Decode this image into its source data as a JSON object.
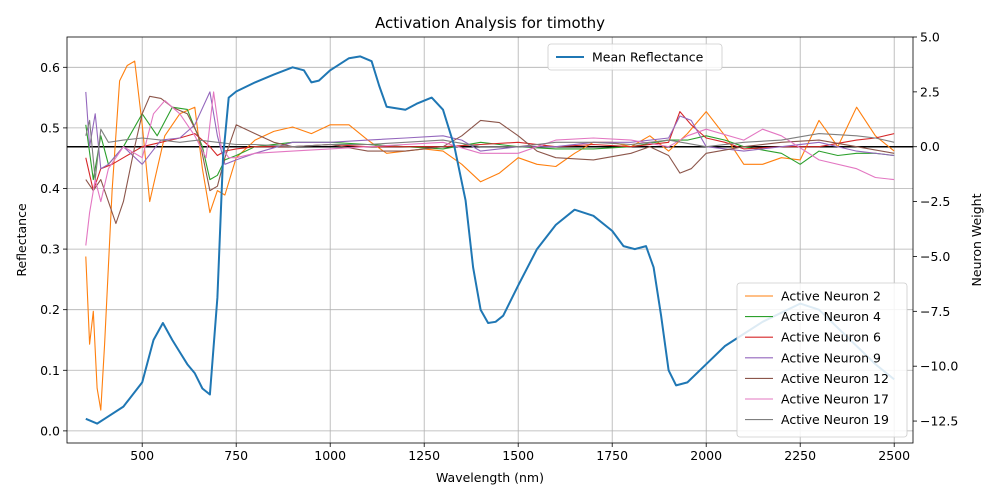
{
  "chart_data": {
    "type": "line",
    "title": "Activation Analysis for timothy",
    "xlabel": "Wavelength (nm)",
    "ylabel": "Reflectance",
    "y2label": "Neuron Weight",
    "xlim": [
      300,
      2550
    ],
    "ylim": [
      -0.02,
      0.65
    ],
    "y2lim": [
      -13.5,
      5.0
    ],
    "xticks": [
      500,
      750,
      1000,
      1250,
      1500,
      1750,
      2000,
      2250,
      2500
    ],
    "yticks": [
      0.0,
      0.1,
      0.2,
      0.3,
      0.4,
      0.5,
      0.6
    ],
    "y2ticks": [
      -12.5,
      -10.0,
      -7.5,
      -5.0,
      -2.5,
      0.0,
      2.5,
      5.0
    ],
    "xtick_labels": [
      "500",
      "750",
      "1000",
      "1250",
      "1500",
      "1750",
      "2000",
      "2250",
      "2500"
    ],
    "ytick_labels": [
      "0.0",
      "0.1",
      "0.2",
      "0.3",
      "0.4",
      "0.5",
      "0.6"
    ],
    "y2tick_labels": [
      "−12.5",
      "−10.0",
      "−7.5",
      "−5.0",
      "−2.5",
      "0.0",
      "2.5",
      "5.0"
    ],
    "grid": true,
    "zero_line": {
      "axis": "right",
      "value": 0.0,
      "color": "#000000"
    },
    "mean_series": {
      "name": "Mean Reflectance",
      "color": "#1f77b4",
      "axis": "left",
      "x": [
        350,
        380,
        400,
        450,
        500,
        530,
        555,
        580,
        600,
        620,
        640,
        660,
        680,
        700,
        715,
        730,
        750,
        800,
        850,
        900,
        930,
        950,
        970,
        1000,
        1050,
        1080,
        1110,
        1130,
        1150,
        1200,
        1230,
        1270,
        1300,
        1330,
        1360,
        1380,
        1400,
        1420,
        1440,
        1460,
        1500,
        1550,
        1600,
        1650,
        1700,
        1750,
        1780,
        1810,
        1840,
        1860,
        1880,
        1900,
        1920,
        1950,
        2000,
        2050,
        2100,
        2150,
        2200,
        2250,
        2300,
        2350,
        2400,
        2450,
        2500
      ],
      "y": [
        0.02,
        0.012,
        0.02,
        0.04,
        0.08,
        0.15,
        0.178,
        0.15,
        0.13,
        0.11,
        0.095,
        0.07,
        0.06,
        0.22,
        0.45,
        0.55,
        0.56,
        0.575,
        0.588,
        0.6,
        0.595,
        0.575,
        0.578,
        0.595,
        0.615,
        0.618,
        0.61,
        0.57,
        0.535,
        0.53,
        0.54,
        0.55,
        0.53,
        0.47,
        0.38,
        0.27,
        0.2,
        0.178,
        0.18,
        0.19,
        0.24,
        0.3,
        0.34,
        0.365,
        0.355,
        0.33,
        0.305,
        0.3,
        0.305,
        0.27,
        0.19,
        0.1,
        0.075,
        0.08,
        0.11,
        0.14,
        0.16,
        0.18,
        0.195,
        0.21,
        0.2,
        0.17,
        0.14,
        0.11,
        0.085
      ]
    },
    "neuron_series": [
      {
        "name": "Active Neuron 2",
        "color": "#ff7f0e",
        "x": [
          350,
          360,
          370,
          380,
          390,
          400,
          420,
          440,
          460,
          480,
          500,
          520,
          540,
          560,
          600,
          640,
          660,
          680,
          700,
          720,
          750,
          800,
          850,
          900,
          950,
          1000,
          1050,
          1100,
          1150,
          1200,
          1250,
          1300,
          1350,
          1400,
          1450,
          1500,
          1550,
          1600,
          1650,
          1700,
          1750,
          1800,
          1850,
          1900,
          1950,
          2000,
          2050,
          2100,
          2150,
          2200,
          2250,
          2300,
          2350,
          2400,
          2450,
          2500
        ],
        "y": [
          -5.0,
          -9.0,
          -7.5,
          -11.0,
          -12.0,
          -9.0,
          -2.0,
          3.0,
          3.7,
          3.9,
          1.0,
          -2.5,
          -1.0,
          0.5,
          1.5,
          1.8,
          -1.0,
          -3.0,
          -2.0,
          -2.2,
          -0.5,
          0.3,
          0.7,
          0.9,
          0.6,
          1.0,
          1.0,
          0.3,
          -0.3,
          -0.2,
          -0.1,
          -0.2,
          -0.8,
          -1.6,
          -1.2,
          -0.5,
          -0.8,
          -0.9,
          -0.3,
          0.2,
          0.2,
          0.0,
          0.5,
          -0.2,
          0.6,
          1.6,
          0.5,
          -0.8,
          -0.8,
          -0.5,
          -0.6,
          1.2,
          0.0,
          1.8,
          0.5,
          -0.2
        ]
      },
      {
        "name": "Active Neuron 4",
        "color": "#2ca02c",
        "x": [
          350,
          370,
          390,
          410,
          450,
          500,
          540,
          580,
          620,
          660,
          680,
          700,
          720,
          750,
          800,
          900,
          1000,
          1100,
          1200,
          1300,
          1400,
          1500,
          1600,
          1700,
          1800,
          1900,
          1950,
          2000,
          2050,
          2100,
          2200,
          2250,
          2300,
          2350,
          2400,
          2450,
          2500
        ],
        "y": [
          1.0,
          -1.5,
          0.5,
          -0.8,
          0.0,
          1.5,
          0.5,
          1.8,
          1.7,
          0.0,
          -1.5,
          -1.3,
          -0.6,
          -0.4,
          0.0,
          0.2,
          0.2,
          0.1,
          0.0,
          -0.1,
          0.2,
          0.0,
          -0.1,
          -0.1,
          0.0,
          0.3,
          0.3,
          0.5,
          0.3,
          0.0,
          -0.3,
          -0.8,
          -0.2,
          -0.4,
          -0.3,
          -0.3,
          -0.4
        ]
      },
      {
        "name": "Active Neuron 6",
        "color": "#d62728",
        "x": [
          350,
          370,
          390,
          420,
          450,
          500,
          550,
          600,
          640,
          680,
          700,
          720,
          750,
          800,
          900,
          1000,
          1100,
          1200,
          1300,
          1400,
          1500,
          1600,
          1700,
          1800,
          1900,
          1930,
          1960,
          2000,
          2050,
          2100,
          2200,
          2300,
          2400,
          2450,
          2500
        ],
        "y": [
          -0.5,
          -2.0,
          -1.0,
          -0.8,
          -0.5,
          0.0,
          0.2,
          0.4,
          0.6,
          0.0,
          -0.4,
          -0.2,
          -0.1,
          0.0,
          0.0,
          0.1,
          0.0,
          0.0,
          0.0,
          0.1,
          0.2,
          0.0,
          0.1,
          0.0,
          0.2,
          1.6,
          1.0,
          0.4,
          0.2,
          -0.1,
          0.0,
          0.0,
          0.3,
          0.4,
          0.6
        ]
      },
      {
        "name": "Active Neuron 9",
        "color": "#9467bd",
        "x": [
          350,
          360,
          375,
          390,
          410,
          450,
          500,
          550,
          600,
          640,
          680,
          700,
          720,
          750,
          800,
          900,
          1000,
          1100,
          1200,
          1300,
          1350,
          1400,
          1500,
          1600,
          1700,
          1800,
          1900,
          1930,
          1960,
          2000,
          2100,
          2200,
          2300,
          2400,
          2500
        ],
        "y": [
          2.5,
          0.0,
          1.5,
          -1.0,
          -0.8,
          0.0,
          -0.8,
          0.3,
          0.4,
          1.0,
          2.5,
          0.5,
          -0.8,
          -0.6,
          -0.3,
          0.2,
          0.2,
          0.3,
          0.4,
          0.5,
          0.3,
          -0.2,
          0.0,
          0.0,
          0.2,
          0.2,
          0.4,
          1.4,
          1.2,
          0.0,
          -0.2,
          0.0,
          0.2,
          -0.2,
          -0.4
        ]
      },
      {
        "name": "Active Neuron 12",
        "color": "#8c564b",
        "x": [
          350,
          370,
          390,
          410,
          430,
          450,
          480,
          500,
          520,
          550,
          580,
          620,
          650,
          680,
          700,
          720,
          750,
          800,
          850,
          900,
          1000,
          1100,
          1200,
          1300,
          1350,
          1400,
          1450,
          1500,
          1550,
          1600,
          1700,
          1800,
          1850,
          1900,
          1930,
          1960,
          2000,
          2100,
          2200,
          2300,
          2400,
          2500
        ],
        "y": [
          -1.5,
          -2.0,
          -1.5,
          -2.5,
          -3.5,
          -2.5,
          0.0,
          1.5,
          2.3,
          2.2,
          1.8,
          1.5,
          0.5,
          -2.0,
          -1.8,
          -0.5,
          1.0,
          0.6,
          0.2,
          0.0,
          0.1,
          -0.2,
          -0.2,
          0.0,
          0.5,
          1.2,
          1.1,
          0.5,
          -0.2,
          -0.5,
          -0.6,
          -0.3,
          0.0,
          -0.4,
          -1.2,
          -1.0,
          -0.3,
          0.0,
          0.2,
          0.3,
          0.0,
          -0.3
        ]
      },
      {
        "name": "Active Neuron 17",
        "color": "#e377c2",
        "x": [
          350,
          360,
          375,
          390,
          410,
          450,
          500,
          530,
          560,
          600,
          640,
          670,
          690,
          710,
          730,
          750,
          800,
          900,
          1000,
          1100,
          1200,
          1300,
          1400,
          1500,
          1600,
          1700,
          1800,
          1900,
          1950,
          2000,
          2100,
          2150,
          2200,
          2300,
          2400,
          2450,
          2500
        ],
        "y": [
          -4.5,
          -3.0,
          -1.5,
          -2.5,
          -1.0,
          0.0,
          -0.5,
          1.5,
          2.1,
          1.5,
          0.5,
          -0.5,
          2.5,
          0.0,
          -0.5,
          -0.5,
          -0.3,
          -0.2,
          -0.1,
          0.0,
          0.1,
          0.2,
          -0.3,
          -0.3,
          0.3,
          0.4,
          0.3,
          0.0,
          0.5,
          0.8,
          0.3,
          0.8,
          0.5,
          -0.6,
          -1.0,
          -1.4,
          -1.5
        ]
      },
      {
        "name": "Active Neuron 19",
        "color": "#7f7f7f",
        "x": [
          350,
          360,
          375,
          390,
          410,
          450,
          500,
          550,
          600,
          650,
          700,
          750,
          800,
          900,
          1000,
          1100,
          1200,
          1300,
          1400,
          1500,
          1600,
          1700,
          1800,
          1900,
          2000,
          2100,
          2200,
          2300,
          2400,
          2450,
          2500
        ],
        "y": [
          0.5,
          1.2,
          -1.5,
          0.8,
          0.2,
          0.3,
          0.4,
          0.3,
          0.2,
          0.3,
          0.2,
          0.1,
          0.1,
          0.0,
          0.1,
          0.1,
          0.2,
          0.3,
          0.0,
          0.0,
          0.2,
          0.2,
          0.1,
          0.3,
          0.0,
          0.2,
          0.3,
          0.6,
          0.5,
          0.4,
          0.2
        ]
      }
    ],
    "legend_upper": {
      "placement": "upper-center",
      "entries": [
        "Mean Reflectance"
      ]
    },
    "legend_lower": {
      "placement": "lower-right",
      "entries": [
        "Active Neuron 2",
        "Active Neuron 4",
        "Active Neuron 6",
        "Active Neuron 9",
        "Active Neuron 12",
        "Active Neuron 17",
        "Active Neuron 19"
      ]
    }
  }
}
